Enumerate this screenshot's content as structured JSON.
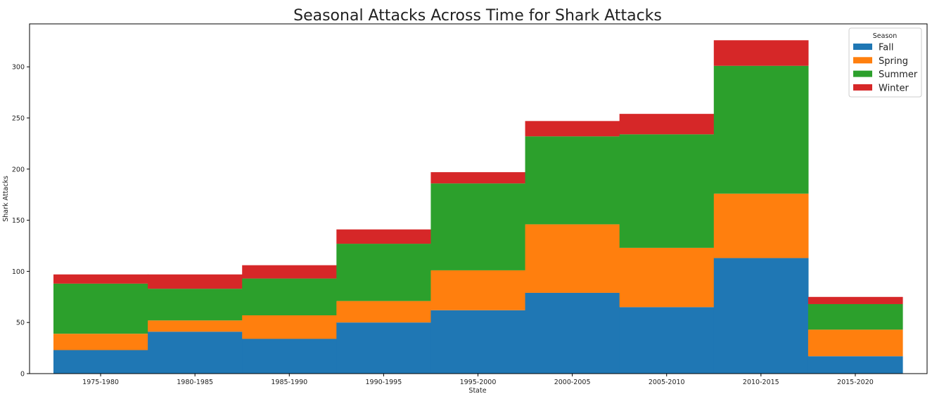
{
  "chart_data": {
    "type": "bar",
    "stacked": true,
    "title": "Seasonal Attacks Across Time for Shark Attacks",
    "xlabel": "State",
    "ylabel": "Shark Attacks",
    "categories": [
      "1975-1980",
      "1980-1985",
      "1985-1990",
      "1990-1995",
      "1995-2000",
      "2000-2005",
      "2005-2010",
      "2010-2015",
      "2015-2020"
    ],
    "ylim": [
      0,
      342
    ],
    "yticks": [
      0,
      50,
      100,
      150,
      200,
      250,
      300
    ],
    "grid": false,
    "legend": {
      "title": "Season",
      "placement": "top-right"
    },
    "series": [
      {
        "name": "Fall",
        "color": "#1f77b4",
        "values": [
          23,
          41,
          34,
          50,
          62,
          79,
          65,
          113,
          17
        ]
      },
      {
        "name": "Spring",
        "color": "#ff7f0e",
        "values": [
          16,
          11,
          23,
          21,
          39,
          67,
          58,
          63,
          26
        ]
      },
      {
        "name": "Summer",
        "color": "#2ca02c",
        "values": [
          49,
          31,
          36,
          56,
          85,
          86,
          111,
          125,
          25
        ]
      },
      {
        "name": "Winter",
        "color": "#d62728",
        "values": [
          9,
          14,
          13,
          14,
          11,
          15,
          20,
          25,
          7
        ]
      }
    ]
  }
}
